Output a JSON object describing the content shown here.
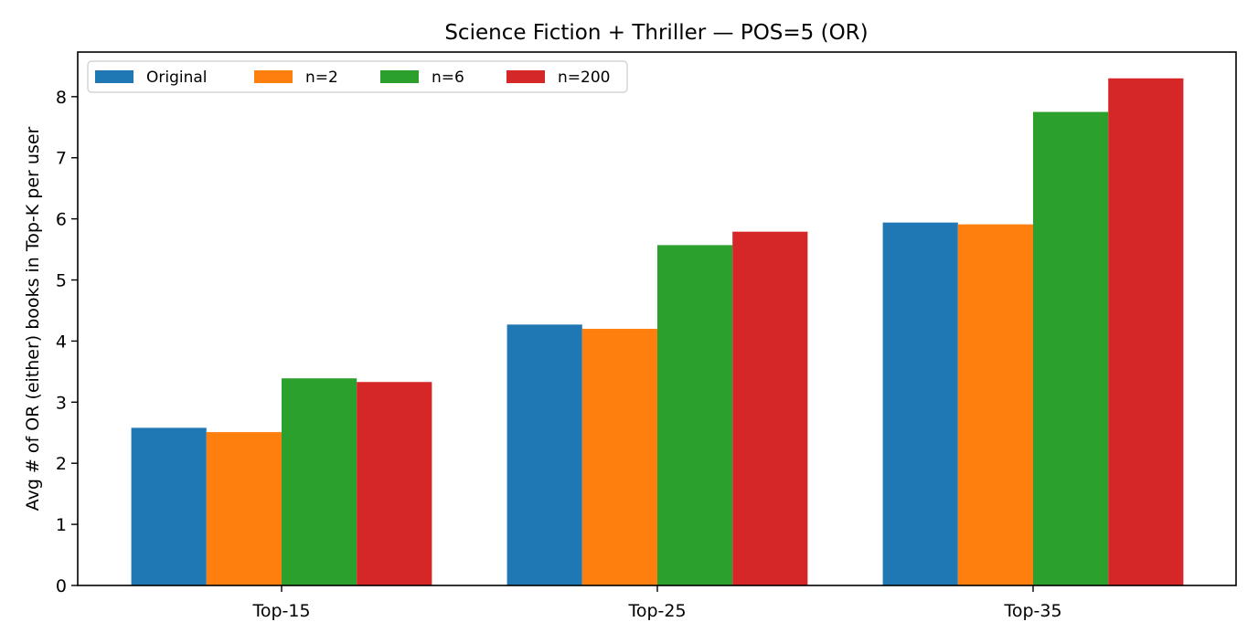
{
  "chart_data": {
    "type": "bar",
    "title": "Science Fiction + Thriller — POS=5 (OR)",
    "xlabel": "",
    "ylabel": "Avg # of OR (either) books in Top-K per user",
    "categories": [
      "Top-15",
      "Top-25",
      "Top-35"
    ],
    "series": [
      {
        "name": "Original",
        "values": [
          2.58,
          4.27,
          5.94
        ],
        "color": "#1f77b4"
      },
      {
        "name": "n=2",
        "values": [
          2.51,
          4.2,
          5.91
        ],
        "color": "#ff7f0e"
      },
      {
        "name": "n=6",
        "values": [
          3.39,
          5.57,
          7.75
        ],
        "color": "#2ca02c"
      },
      {
        "name": "n=200",
        "values": [
          3.33,
          5.79,
          8.3
        ],
        "color": "#d62728"
      }
    ],
    "ylim": [
      0,
      8.73
    ],
    "yticks": [
      0,
      1,
      2,
      3,
      4,
      5,
      6,
      7,
      8
    ],
    "grid": false,
    "legend": {
      "position": "top-left",
      "columns": 4
    }
  }
}
